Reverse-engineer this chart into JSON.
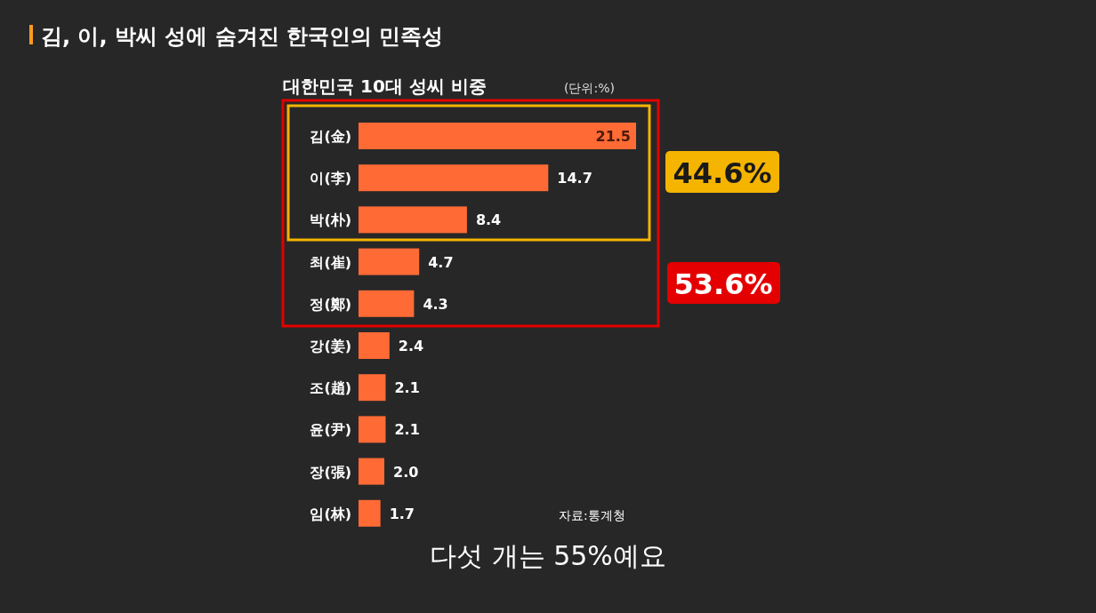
{
  "chart_data": {
    "type": "bar",
    "orientation": "horizontal",
    "title": "김, 이, 박씨 성에 숨겨진 한국인의 민족성",
    "subtitle": "대한민국 10대 성씨 비중",
    "categories": [
      "김(金)",
      "이(李)",
      "박(朴)",
      "최(崔)",
      "정(鄭)",
      "강(姜)",
      "조(趙)",
      "윤(尹)",
      "장(張)",
      "임(林)"
    ],
    "values": [
      21.5,
      14.7,
      8.4,
      4.7,
      4.3,
      2.4,
      2.1,
      2.1,
      2.0,
      1.7
    ],
    "color": "#ff6a35",
    "value_labels": [
      "21.5",
      "14.7",
      "8.4",
      "4.7",
      "4.3",
      "2.4",
      "2.1",
      "2.1",
      "2.0",
      "1.7"
    ],
    "annotations": [
      "44.6%",
      "53.6%",
      "(단위:%)",
      "자료:통계청",
      "다섯 개는 55%예요"
    ]
  }
}
